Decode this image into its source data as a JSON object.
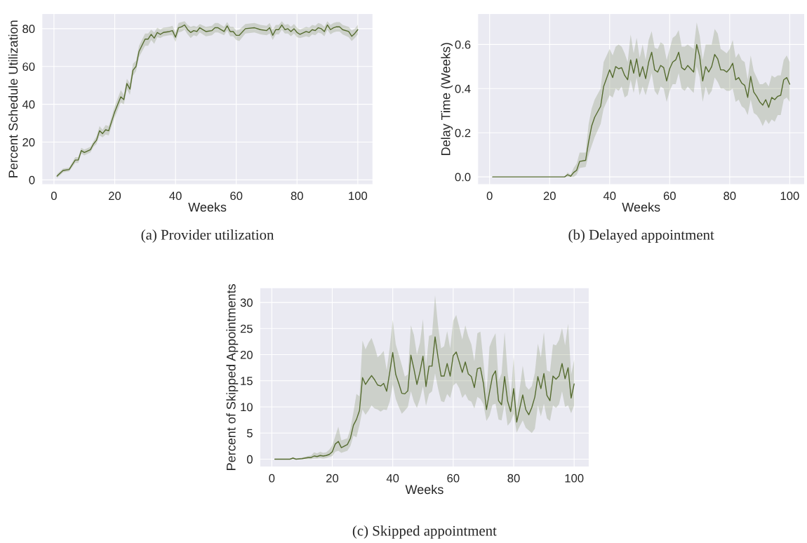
{
  "chart_data": [
    {
      "type": "line",
      "xlabel": "Weeks",
      "ylabel": "Percent Schedule Utilization",
      "annotations": [
        "(a) Provider utilization"
      ],
      "grid": true,
      "xlim": [
        -3.95,
        104.95
      ],
      "ylim": [
        -2.5,
        88
      ],
      "xticks": [
        0,
        20,
        40,
        60,
        80,
        100
      ],
      "yticks": [
        0,
        20,
        40,
        60,
        80
      ],
      "series": [
        {
          "color": "#556b2f",
          "x": [
            1,
            3,
            5,
            7,
            8,
            9,
            10,
            12,
            13,
            14,
            15,
            16,
            17,
            18,
            19,
            20,
            22,
            23,
            24,
            25,
            26,
            27,
            28,
            30,
            31,
            32,
            33,
            34,
            35,
            36,
            38,
            39,
            40,
            41,
            42,
            43,
            44,
            45,
            46,
            47,
            48,
            50,
            52,
            53,
            54,
            56,
            57,
            58,
            59,
            60,
            61,
            63,
            66,
            68,
            70,
            71,
            72,
            73,
            74,
            75,
            76,
            77,
            78,
            79,
            80,
            81,
            83,
            84,
            85,
            86,
            87,
            88,
            89,
            90,
            91,
            92,
            93,
            94,
            95,
            97,
            98,
            99,
            100
          ],
          "values": [
            2,
            5,
            5.5,
            10.5,
            10.5,
            15.5,
            14.5,
            16,
            19,
            21,
            26,
            24.5,
            26.5,
            26,
            31,
            36,
            44,
            42.5,
            51,
            48,
            58,
            60,
            68,
            74.5,
            74.5,
            77,
            75,
            78,
            77,
            78,
            78.5,
            79,
            75.5,
            80.5,
            81,
            82,
            79.5,
            78,
            79,
            78.5,
            80.5,
            78.5,
            79,
            80.5,
            80.5,
            78.5,
            81.5,
            78.5,
            78.5,
            76.5,
            76.5,
            80,
            80.5,
            79.5,
            79,
            80.5,
            76.5,
            79.5,
            79.5,
            82,
            79.5,
            80,
            78.5,
            80,
            78,
            77,
            78.5,
            78,
            79.5,
            79,
            80.5,
            80,
            78.5,
            82,
            79.5,
            80.5,
            81,
            81,
            79.5,
            78.5,
            76,
            77.5,
            79.5
          ],
          "lower": [
            1,
            4,
            4.5,
            9,
            9,
            14,
            13,
            14.5,
            17.5,
            19,
            23.5,
            22.5,
            24,
            23.5,
            28.5,
            33,
            41,
            40,
            48,
            45,
            55,
            57.5,
            65,
            71,
            71,
            74,
            72,
            75.5,
            75,
            76,
            76.5,
            76.5,
            73,
            78,
            78.5,
            79.5,
            77,
            75,
            76.5,
            76,
            78,
            76,
            76.5,
            78,
            78,
            76.5,
            79,
            76,
            76,
            74,
            73.5,
            77.5,
            78,
            77,
            76.5,
            77.5,
            74,
            77,
            77,
            79.5,
            77.5,
            77.5,
            76,
            77.5,
            75.5,
            75,
            76,
            75.5,
            77,
            76.5,
            78,
            77.5,
            76,
            79.5,
            77,
            78,
            78.5,
            78.5,
            77,
            75.5,
            73.5,
            75,
            77
          ],
          "upper": [
            3,
            6,
            6.5,
            12,
            12,
            17,
            16,
            17.5,
            20.5,
            23,
            28.5,
            26.5,
            29,
            28.5,
            33.5,
            39,
            47.5,
            45,
            53.5,
            51,
            61.5,
            63,
            71,
            77.5,
            77.5,
            79.5,
            78,
            80.5,
            79.5,
            80.5,
            81,
            81.5,
            78,
            83,
            83.5,
            84,
            82,
            81,
            81.5,
            81,
            82.5,
            81,
            81.5,
            83,
            83,
            81,
            83.5,
            81,
            81,
            79,
            79.5,
            82.5,
            83,
            82,
            81.5,
            83,
            79.5,
            82,
            82,
            84,
            82,
            82.5,
            81,
            82.5,
            80.5,
            79.5,
            81,
            80.5,
            82,
            81.5,
            83,
            82.5,
            81,
            84,
            82,
            83,
            83.5,
            83.5,
            82,
            81,
            79,
            80,
            82
          ]
        }
      ]
    },
    {
      "type": "line",
      "xlabel": "Weeks",
      "ylabel": "Delay Time (Weeks)",
      "annotations": [
        "(b) Delayed appointment"
      ],
      "grid": true,
      "xlim": [
        -3.95,
        104.95
      ],
      "ylim": [
        -0.035,
        0.74
      ],
      "xticks": [
        0,
        20,
        40,
        60,
        80,
        100
      ],
      "yticks": [
        {
          "value": 0,
          "label": "0.0"
        },
        0.2,
        0.4,
        0.6
      ],
      "series": [
        {
          "color": "#556b2f",
          "x": [
            1,
            25,
            26,
            27,
            28,
            29,
            30,
            32,
            33,
            34,
            35,
            37,
            38,
            40,
            41,
            42,
            43,
            44,
            45,
            46,
            47,
            48,
            49,
            50,
            51,
            52,
            53,
            54,
            55,
            56,
            57,
            58,
            59,
            60,
            61,
            62,
            63,
            64,
            65,
            66,
            68,
            69,
            70,
            71,
            72,
            73,
            74,
            75,
            76,
            77,
            78,
            79,
            80,
            81,
            82,
            83,
            84,
            85,
            86,
            87,
            88,
            89,
            90,
            91,
            92,
            93,
            94,
            95,
            96,
            97,
            98,
            99,
            100
          ],
          "values": [
            0,
            0,
            0.01,
            0.003,
            0.02,
            0.03,
            0.07,
            0.075,
            0.16,
            0.23,
            0.27,
            0.32,
            0.41,
            0.485,
            0.45,
            0.5,
            0.49,
            0.495,
            0.46,
            0.44,
            0.53,
            0.47,
            0.535,
            0.455,
            0.5,
            0.445,
            0.52,
            0.565,
            0.485,
            0.475,
            0.505,
            0.495,
            0.435,
            0.49,
            0.52,
            0.53,
            0.565,
            0.495,
            0.485,
            0.505,
            0.475,
            0.6,
            0.545,
            0.435,
            0.5,
            0.475,
            0.5,
            0.555,
            0.535,
            0.485,
            0.485,
            0.475,
            0.49,
            0.515,
            0.44,
            0.45,
            0.425,
            0.415,
            0.36,
            0.455,
            0.385,
            0.365,
            0.34,
            0.325,
            0.35,
            0.315,
            0.36,
            0.35,
            0.365,
            0.37,
            0.44,
            0.45,
            0.42
          ],
          "lower": [
            0,
            0,
            0,
            0,
            0,
            0.01,
            0.04,
            0.045,
            0.1,
            0.14,
            0.18,
            0.24,
            0.31,
            0.37,
            0.36,
            0.4,
            0.39,
            0.41,
            0.36,
            0.37,
            0.44,
            0.38,
            0.45,
            0.37,
            0.41,
            0.37,
            0.42,
            0.47,
            0.39,
            0.37,
            0.41,
            0.4,
            0.34,
            0.39,
            0.42,
            0.42,
            0.47,
            0.4,
            0.39,
            0.41,
            0.38,
            0.5,
            0.45,
            0.34,
            0.41,
            0.37,
            0.39,
            0.45,
            0.43,
            0.4,
            0.4,
            0.39,
            0.39,
            0.4,
            0.34,
            0.35,
            0.32,
            0.31,
            0.28,
            0.35,
            0.29,
            0.28,
            0.26,
            0.23,
            0.26,
            0.24,
            0.26,
            0.25,
            0.28,
            0.28,
            0.35,
            0.36,
            0.34
          ],
          "upper": [
            0,
            0,
            0.02,
            0.01,
            0.04,
            0.06,
            0.11,
            0.11,
            0.24,
            0.31,
            0.35,
            0.4,
            0.52,
            0.58,
            0.55,
            0.59,
            0.6,
            0.59,
            0.56,
            0.52,
            0.645,
            0.56,
            0.63,
            0.54,
            0.6,
            0.53,
            0.62,
            0.66,
            0.585,
            0.58,
            0.61,
            0.6,
            0.53,
            0.58,
            0.63,
            0.64,
            0.665,
            0.59,
            0.59,
            0.6,
            0.58,
            0.7,
            0.64,
            0.53,
            0.6,
            0.6,
            0.6,
            0.67,
            0.65,
            0.58,
            0.57,
            0.56,
            0.58,
            0.62,
            0.54,
            0.56,
            0.53,
            0.52,
            0.44,
            0.55,
            0.48,
            0.45,
            0.42,
            0.42,
            0.43,
            0.41,
            0.46,
            0.45,
            0.46,
            0.46,
            0.53,
            0.55,
            0.52
          ]
        }
      ]
    },
    {
      "type": "line",
      "xlabel": "Weeks",
      "ylabel": "Percent of Skipped Appointments",
      "annotations": [
        "(c) Skipped appointment"
      ],
      "grid": true,
      "xlim": [
        -3.95,
        104.95
      ],
      "ylim": [
        -1.5,
        32.8
      ],
      "xticks": [
        0,
        20,
        40,
        60,
        80,
        100
      ],
      "yticks": [
        0,
        5,
        10,
        15,
        20,
        25,
        30
      ],
      "series": [
        {
          "color": "#556b2f",
          "x": [
            1,
            6,
            7,
            8,
            10,
            12,
            13,
            14,
            15,
            16,
            17,
            18,
            19,
            20,
            21,
            22,
            23,
            24,
            25,
            26,
            27,
            28,
            29,
            30,
            31,
            32,
            33,
            34,
            35,
            36,
            37,
            38,
            39,
            40,
            41,
            42,
            43,
            44,
            45,
            46,
            47,
            48,
            49,
            50,
            51,
            52,
            53,
            54,
            55,
            56,
            57,
            58,
            59,
            60,
            61,
            62,
            63,
            64,
            65,
            66,
            67,
            68,
            69,
            70,
            71,
            72,
            73,
            74,
            75,
            76,
            77,
            78,
            79,
            80,
            81,
            82,
            83,
            84,
            85,
            86,
            87,
            88,
            89,
            90,
            91,
            92,
            93,
            94,
            95,
            96,
            97,
            98,
            99,
            100
          ],
          "values": [
            0,
            0,
            0.2,
            0,
            0.1,
            0.3,
            0.3,
            0.6,
            0.5,
            0.7,
            0.6,
            0.7,
            0.9,
            1.4,
            2.9,
            3.4,
            2.2,
            2.5,
            2.8,
            4,
            6.5,
            7.6,
            9.3,
            15.6,
            14.3,
            15.2,
            16,
            15.2,
            14.2,
            14,
            14.5,
            13,
            16.6,
            20.4,
            16.2,
            14.5,
            12.6,
            12.5,
            13.1,
            19.9,
            17.3,
            14.3,
            16.7,
            19.7,
            13.9,
            17.8,
            17.8,
            23.4,
            19.4,
            15.9,
            15.9,
            18.3,
            15.9,
            19.8,
            20.5,
            18.6,
            16.6,
            18.6,
            16.3,
            15.8,
            13.7,
            17.3,
            17.5,
            14.5,
            9.5,
            12.8,
            15.9,
            16.9,
            11.2,
            10.4,
            15.8,
            11.1,
            9.1,
            13.5,
            7.1,
            9.7,
            12.3,
            9.5,
            8.5,
            9.9,
            11.9,
            15.8,
            13.5,
            16.4,
            12.2,
            11.2,
            15.9,
            15.3,
            15.9,
            18.3,
            15.4,
            17.5,
            11.7,
            14.4
          ],
          "lower": [
            0,
            0,
            0,
            0,
            0,
            0,
            0,
            0.1,
            0.1,
            0.2,
            0.1,
            0.2,
            0.4,
            0.6,
            1.4,
            1.6,
            1.2,
            1.4,
            1.6,
            2.5,
            4.5,
            4.2,
            6.5,
            9.5,
            8.5,
            9.3,
            10.3,
            9.7,
            9.5,
            9.1,
            9.5,
            9.4,
            11,
            14.3,
            11.5,
            10,
            8.7,
            9.3,
            10,
            13,
            11,
            9.8,
            11.5,
            13.9,
            10.2,
            12.5,
            13,
            16.4,
            13.5,
            11.1,
            10.9,
            12.5,
            11.7,
            14.1,
            14.6,
            13.6,
            11.7,
            12.5,
            11.3,
            11,
            9.7,
            11.9,
            11.5,
            10.5,
            7.3,
            8.3,
            10.4,
            10.6,
            7.6,
            7.4,
            10.6,
            6.4,
            7.1,
            8.7,
            5.1,
            6.3,
            7.4,
            6,
            5.5,
            5,
            5.8,
            10.3,
            8.2,
            10.6,
            7.8,
            7.3,
            10.3,
            9.8,
            10.5,
            13,
            10,
            10.3,
            8.8,
            10.3
          ],
          "upper": [
            0,
            0,
            0.4,
            0.1,
            0.3,
            0.6,
            0.7,
            1.3,
            1.1,
            1.4,
            1.2,
            1.3,
            1.8,
            2.6,
            4.4,
            6.2,
            3.6,
            3.8,
            4,
            5.8,
            9,
            12.5,
            12,
            22.7,
            21,
            22.3,
            23.2,
            21.5,
            19.5,
            20,
            20.7,
            17,
            21.3,
            26.7,
            22,
            20,
            18,
            15.8,
            16.2,
            25.6,
            23.8,
            20,
            22.3,
            26.8,
            17.8,
            23.6,
            23.8,
            31.4,
            25.5,
            21.2,
            21.6,
            24.5,
            21.2,
            26.5,
            27.6,
            25.3,
            22.9,
            25.6,
            23.5,
            22,
            18.7,
            24.1,
            24.4,
            18.7,
            12.5,
            21.5,
            23,
            24.1,
            15,
            16.4,
            24.3,
            16.6,
            11.8,
            19.6,
            9.6,
            13.5,
            17.9,
            14,
            13.3,
            14,
            16.5,
            22.1,
            19.5,
            24.3,
            17,
            16.7,
            22,
            21.8,
            22.8,
            25.1,
            21.8,
            25.9,
            16.2,
            19
          ]
        }
      ]
    }
  ]
}
